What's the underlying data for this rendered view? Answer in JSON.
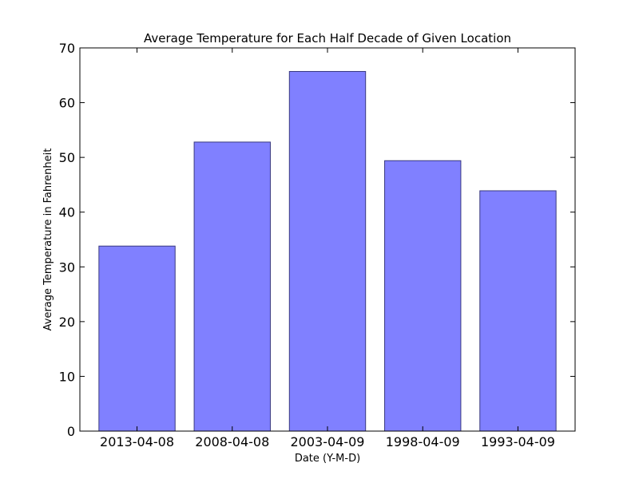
{
  "chart_data": {
    "type": "bar",
    "title": "Average Temperature for Each Half Decade of Given Location",
    "xlabel": "Date (Y-M-D)",
    "ylabel": "Average Temperature in Fahrenheit",
    "categories": [
      "2013-04-08",
      "2008-04-08",
      "2003-04-09",
      "1998-04-09",
      "1993-04-09"
    ],
    "values": [
      33.8,
      52.8,
      65.7,
      49.4,
      43.9
    ],
    "ylim": [
      0,
      70
    ],
    "yticks": [
      0,
      10,
      20,
      30,
      40,
      50,
      60,
      70
    ],
    "grid": false,
    "bar_color": "#8080ff",
    "bar_edge_color": "#3a3a80"
  }
}
